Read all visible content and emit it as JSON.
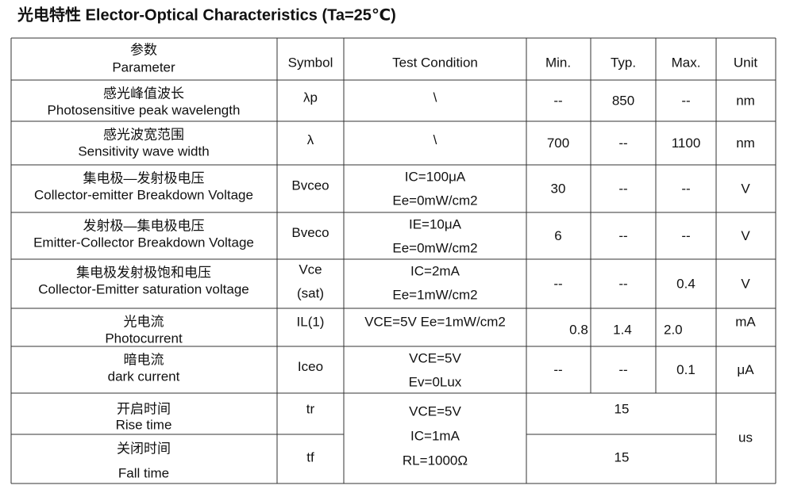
{
  "title": "光电特性 Elector-Optical Characteristics (Ta=25℃)",
  "table": {
    "header": {
      "parameter": [
        "参数",
        "Parameter"
      ],
      "symbol": "Symbol",
      "condition": "Test Condition",
      "min": "Min.",
      "typ": "Typ.",
      "max": "Max.",
      "unit": "Unit"
    },
    "rows": [
      {
        "parameter": [
          "感光峰值波长",
          "Photosensitive peak wavelength"
        ],
        "symbol": [
          "λp"
        ],
        "condition": [
          "\\"
        ],
        "min": "--",
        "typ": "850",
        "max": "--",
        "unit": "nm"
      },
      {
        "parameter": [
          "感光波宽范围",
          "Sensitivity wave width"
        ],
        "symbol": [
          "λ"
        ],
        "condition": [
          "\\"
        ],
        "min": "700",
        "typ": "--",
        "max": "1100",
        "unit": "nm"
      },
      {
        "parameter": [
          "集电极—发射极电压",
          "Collector-emitter Breakdown Voltage"
        ],
        "symbol": [
          "Bvceo"
        ],
        "condition": [
          "IC=100μA",
          "Ee=0mW/cm2"
        ],
        "min": "30",
        "typ": "--",
        "max": "--",
        "unit": "V"
      },
      {
        "parameter": [
          "发射极—集电极电压",
          "Emitter-Collector Breakdown Voltage"
        ],
        "symbol": [
          "Bveco"
        ],
        "condition": [
          "IE=10μA",
          "Ee=0mW/cm2"
        ],
        "min": "6",
        "typ": "--",
        "max": "--",
        "unit": "V"
      },
      {
        "parameter": [
          "集电极发射极饱和电压",
          "Collector-Emitter saturation voltage"
        ],
        "symbol": [
          "Vce",
          "(sat)"
        ],
        "condition": [
          "IC=2mA",
          "Ee=1mW/cm2"
        ],
        "min": "--",
        "typ": "--",
        "max": "0.4",
        "unit": "V"
      },
      {
        "parameter": [
          "光电流",
          "Photocurrent"
        ],
        "symbol": [
          "IL(1)"
        ],
        "condition": [
          "VCE=5V   Ee=1mW/cm2"
        ],
        "min": "0.8",
        "typ": "1.4",
        "max": "2.0",
        "unit": "mA"
      },
      {
        "parameter": [
          "暗电流",
          "dark current"
        ],
        "symbol": [
          "Iceo"
        ],
        "condition": [
          "VCE=5V",
          "Ev=0Lux"
        ],
        "min": "--",
        "typ": "--",
        "max": "0.1",
        "unit": "μA"
      }
    ],
    "switching": {
      "condition": [
        "VCE=5V",
        "IC=1mA",
        "RL=1000Ω"
      ],
      "unit": "us",
      "rows": [
        {
          "parameter": [
            "开启时间",
            "Rise time"
          ],
          "symbol": "tr",
          "value": "15"
        },
        {
          "parameter": [
            "关闭时间",
            "Fall time"
          ],
          "symbol": "tf",
          "value": "15"
        }
      ]
    }
  }
}
